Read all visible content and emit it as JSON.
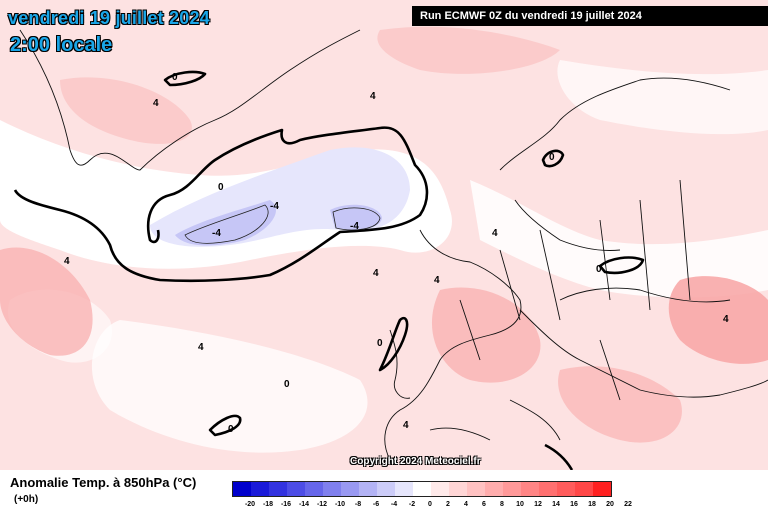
{
  "header": {
    "date": "vendredi 19 juillet 2024",
    "time": "2:00 locale",
    "run": "Run ECMWF 0Z du vendredi 19 juillet 2024"
  },
  "copyright": "Copyright 2024 Meteociel.fr",
  "legend": {
    "title": "Anomalie Temp. à 850hPa (°C)",
    "subtitle": "(+0h)",
    "ticks": [
      "-20",
      "-18",
      "-16",
      "-14",
      "-12",
      "-10",
      "-8",
      "-6",
      "-4",
      "-2",
      "0",
      "2",
      "4",
      "6",
      "8",
      "10",
      "12",
      "14",
      "16",
      "18",
      "20",
      "22"
    ],
    "colors": [
      "#0000cc",
      "#1a1ad9",
      "#3333e0",
      "#4d4de6",
      "#6666ea",
      "#8080ee",
      "#9999f2",
      "#b3b3f5",
      "#ccccf8",
      "#e6e6fc",
      "#ffffff",
      "#ffeaea",
      "#ffd6d6",
      "#ffc2c2",
      "#ffadad",
      "#ff9999",
      "#ff8585",
      "#ff7070",
      "#ff5c5c",
      "#ff4747",
      "#ff2020"
    ]
  },
  "map_labels": {
    "zero": "0",
    "four": "4",
    "minus_four": "-4"
  }
}
